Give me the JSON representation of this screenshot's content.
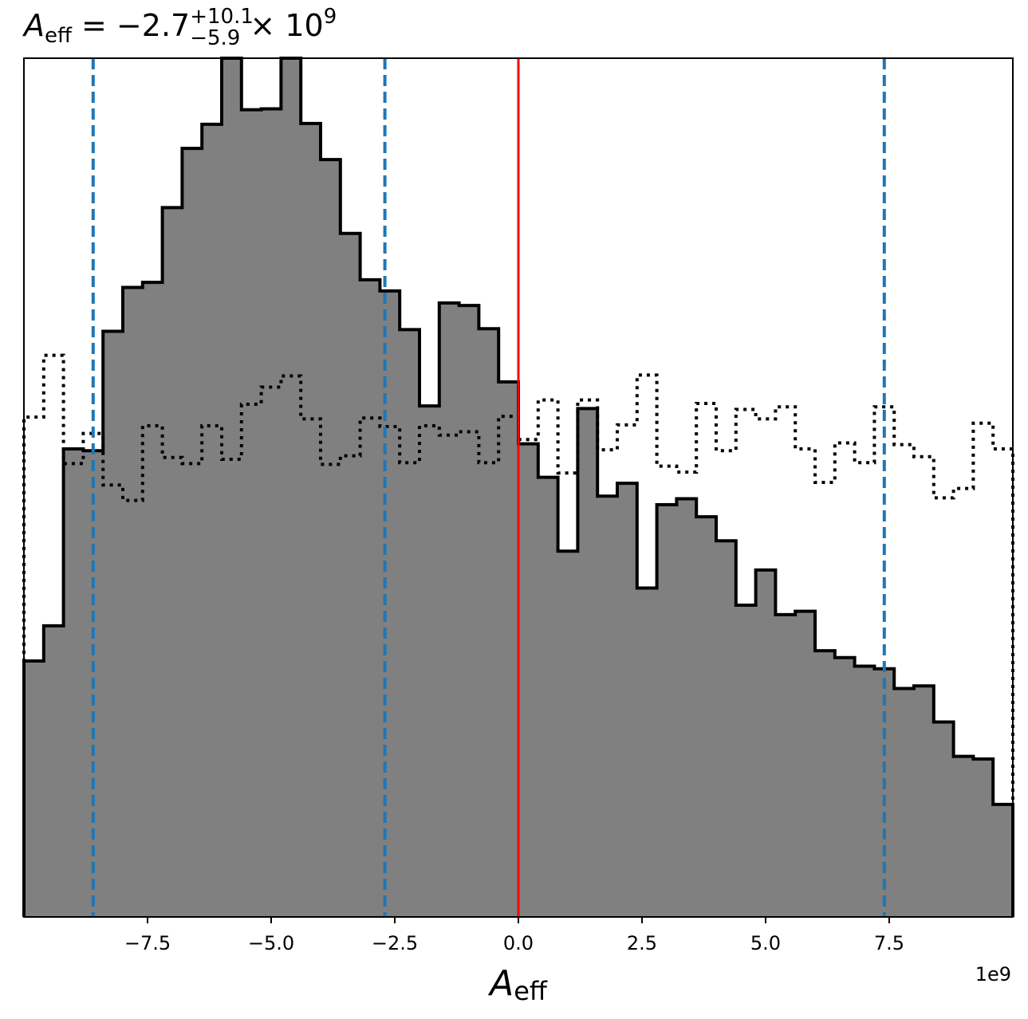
{
  "chart_data": {
    "type": "histogram",
    "title": {
      "symbol": "A",
      "symbol_sub": "eff",
      "relation": " = ",
      "value": "−2.7",
      "upper_err": "+10.1",
      "lower_err": "−5.9",
      "times": " × 10",
      "exponent": "9"
    },
    "xlabel": {
      "symbol": "A",
      "sub": "eff"
    },
    "x_offset_label": "1e9",
    "xlim": [
      -10.0,
      10.0
    ],
    "x_unit_scale": 1000000000.0,
    "xticks": [
      -7.5,
      -5.0,
      -2.5,
      0.0,
      2.5,
      5.0,
      7.5
    ],
    "xtick_labels": [
      "−7.5",
      "−5.0",
      "−2.5",
      "0.0",
      "2.5",
      "5.0",
      "7.5"
    ],
    "ylim": [
      0,
      100
    ],
    "y_axis_visible": false,
    "bin_edges": [
      -10.0,
      -9.6,
      -9.2,
      -8.8,
      -8.4,
      -8.0,
      -7.6,
      -7.2,
      -6.8,
      -6.4,
      -6.0,
      -5.6,
      -5.2,
      -4.8,
      -4.4,
      -4.0,
      -3.6,
      -3.2,
      -2.8,
      -2.4,
      -2.0,
      -1.6,
      -1.2,
      -0.8,
      -0.4,
      0.0,
      0.4,
      0.8,
      1.2,
      1.6,
      2.0,
      2.4,
      2.8,
      3.2,
      3.6,
      4.0,
      4.4,
      4.8,
      5.2,
      5.6,
      6.0,
      6.4,
      6.8,
      7.2,
      7.6,
      8.0,
      8.4,
      8.8,
      9.2,
      9.6,
      10.0
    ],
    "series": [
      {
        "style": "filled-step",
        "fill": "#808080",
        "edge": "#000000",
        "values": [
          29.8,
          33.9,
          54.5,
          54.3,
          68.2,
          73.3,
          73.9,
          82.6,
          89.5,
          92.3,
          100.0,
          94.0,
          94.1,
          100.0,
          92.4,
          88.2,
          79.6,
          74.2,
          72.9,
          68.4,
          59.5,
          71.5,
          71.2,
          68.5,
          62.3,
          55.1,
          51.2,
          42.6,
          59.2,
          49.0,
          50.5,
          38.3,
          48.0,
          48.7,
          46.6,
          43.8,
          36.3,
          40.4,
          35.2,
          35.6,
          31.0,
          30.2,
          29.2,
          28.9,
          26.6,
          26.9,
          22.7,
          18.7,
          18.4,
          13.1
        ]
      },
      {
        "style": "dotted-step",
        "edge": "#000000",
        "values": [
          58.2,
          65.4,
          52.8,
          56.3,
          50.3,
          48.5,
          57.2,
          53.5,
          52.8,
          57.2,
          53.3,
          59.7,
          61.7,
          63.0,
          58.0,
          52.7,
          53.7,
          58.1,
          57.1,
          52.9,
          57.2,
          56.1,
          56.5,
          52.9,
          58.3,
          55.6,
          60.2,
          51.7,
          60.2,
          54.4,
          57.3,
          63.1,
          52.5,
          51.8,
          59.8,
          54.3,
          59.1,
          58.0,
          59.4,
          54.5,
          50.6,
          55.2,
          52.9,
          59.4,
          55.0,
          53.6,
          48.8,
          49.9,
          57.5,
          54.5
        ]
      }
    ],
    "vlines": [
      {
        "x": -8.6,
        "color": "#1f77b4",
        "style": "dashed"
      },
      {
        "x": -2.7,
        "color": "#1f77b4",
        "style": "dashed"
      },
      {
        "x": 0.0,
        "color": "#ff0000",
        "style": "solid"
      },
      {
        "x": 7.4,
        "color": "#1f77b4",
        "style": "dashed"
      }
    ],
    "grid": false
  }
}
